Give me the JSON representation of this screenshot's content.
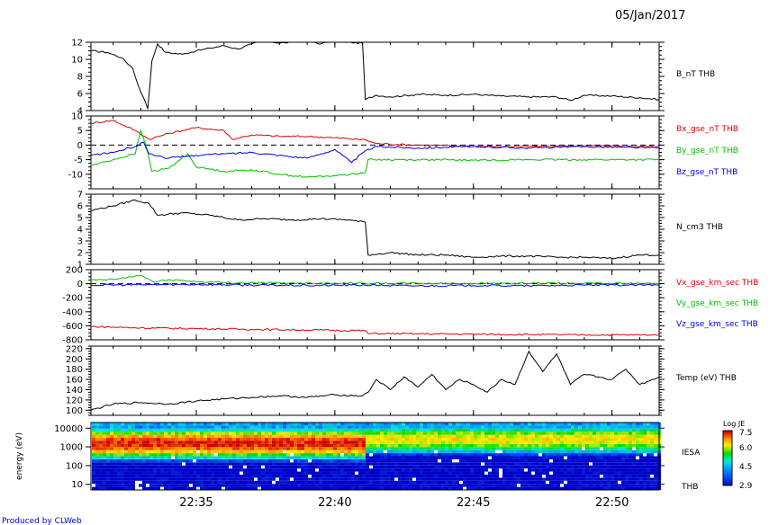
{
  "date_label": "05/Jan/2017",
  "footer": "Produced by CLWeb",
  "time_axis": {
    "range_minutes": [
      31.2,
      51.7
    ],
    "ticks": [
      "22:35",
      "22:40",
      "22:45",
      "22:50"
    ],
    "tick_minutes": [
      35,
      40,
      45,
      50
    ]
  },
  "colors": {
    "black": "#000000",
    "red": "#e00000",
    "green": "#00c000",
    "blue": "#0000e0"
  },
  "chart_data": [
    {
      "type": "line",
      "id": "bnt",
      "ylim": [
        4,
        12
      ],
      "yticks": [
        "4",
        "6",
        "8",
        "10",
        "12"
      ],
      "yvals": [
        4,
        6,
        8,
        10,
        12
      ],
      "series": [
        {
          "name": "B_nT THB",
          "color": "#000000",
          "points": [
            [
              31.2,
              11.0
            ],
            [
              31.8,
              10.8
            ],
            [
              32.3,
              10.2
            ],
            [
              32.7,
              9.0
            ],
            [
              32.9,
              7.0
            ],
            [
              33.1,
              5.5
            ],
            [
              33.25,
              4.2
            ],
            [
              33.4,
              9.8
            ],
            [
              33.6,
              11.8
            ],
            [
              33.9,
              10.8
            ],
            [
              34.5,
              10.6
            ],
            [
              35.0,
              11.0
            ],
            [
              35.5,
              11.3
            ],
            [
              36.0,
              11.6
            ],
            [
              36.5,
              11.2
            ],
            [
              37.0,
              11.8
            ],
            [
              37.5,
              12.2
            ],
            [
              38.0,
              11.9
            ],
            [
              38.5,
              12.0
            ],
            [
              39.0,
              12.2
            ],
            [
              39.5,
              11.8
            ],
            [
              40.0,
              12.3
            ],
            [
              40.5,
              12.0
            ],
            [
              41.0,
              11.9
            ],
            [
              41.1,
              5.3
            ],
            [
              41.5,
              5.8
            ],
            [
              42.0,
              5.6
            ],
            [
              43.0,
              5.9
            ],
            [
              44.0,
              5.8
            ],
            [
              45.0,
              5.9
            ],
            [
              46.0,
              5.7
            ],
            [
              47.0,
              5.6
            ],
            [
              48.0,
              5.6
            ],
            [
              48.5,
              5.2
            ],
            [
              49.0,
              5.8
            ],
            [
              50.0,
              5.7
            ],
            [
              51.0,
              5.5
            ],
            [
              51.7,
              5.3
            ]
          ]
        }
      ]
    },
    {
      "type": "line",
      "id": "bgse",
      "ylim": [
        -15,
        10
      ],
      "yticks": [
        "10",
        "5",
        "0",
        "-5",
        "-10"
      ],
      "yvals": [
        10,
        5,
        0,
        -5,
        -10
      ],
      "zero_line": true,
      "series": [
        {
          "name": "Bx_gse_nT THB",
          "color": "#e00000",
          "points": [
            [
              31.2,
              7.5
            ],
            [
              32.0,
              8.5
            ],
            [
              32.8,
              5.0
            ],
            [
              33.3,
              2.0
            ],
            [
              34.0,
              4.0
            ],
            [
              35.0,
              6.0
            ],
            [
              36.0,
              5.0
            ],
            [
              36.3,
              2.0
            ],
            [
              37.0,
              3.5
            ],
            [
              38.0,
              3.0
            ],
            [
              39.0,
              3.0
            ],
            [
              40.0,
              2.5
            ],
            [
              41.1,
              1.8
            ],
            [
              41.5,
              0.5
            ],
            [
              43.0,
              0.0
            ],
            [
              45.0,
              -0.5
            ],
            [
              47.0,
              -0.5
            ],
            [
              49.0,
              -0.3
            ],
            [
              51.7,
              -0.5
            ]
          ]
        },
        {
          "name": "By_gse_nT THB",
          "color": "#00c000",
          "points": [
            [
              31.2,
              -7.0
            ],
            [
              32.0,
              -5.0
            ],
            [
              32.8,
              -3.0
            ],
            [
              33.0,
              5.0
            ],
            [
              33.2,
              -0.5
            ],
            [
              33.4,
              -9.0
            ],
            [
              34.0,
              -8.0
            ],
            [
              34.7,
              -3.0
            ],
            [
              35.0,
              -7.5
            ],
            [
              36.0,
              -9.0
            ],
            [
              37.0,
              -8.5
            ],
            [
              38.0,
              -10.0
            ],
            [
              39.0,
              -11.0
            ],
            [
              40.0,
              -10.5
            ],
            [
              41.1,
              -9.5
            ],
            [
              41.2,
              -5.0
            ],
            [
              43.0,
              -5.0
            ],
            [
              45.0,
              -5.2
            ],
            [
              47.0,
              -5.0
            ],
            [
              49.0,
              -5.0
            ],
            [
              51.7,
              -5.0
            ]
          ]
        },
        {
          "name": "Bz_gse_nT THB",
          "color": "#0000e0",
          "points": [
            [
              31.2,
              -3.5
            ],
            [
              32.0,
              -2.5
            ],
            [
              32.8,
              -0.5
            ],
            [
              33.1,
              1.0
            ],
            [
              33.3,
              -3.0
            ],
            [
              34.0,
              -4.5
            ],
            [
              35.0,
              -3.5
            ],
            [
              36.0,
              -3.0
            ],
            [
              37.0,
              -2.5
            ],
            [
              38.0,
              -3.5
            ],
            [
              39.0,
              -4.5
            ],
            [
              40.0,
              -1.5
            ],
            [
              40.6,
              -6.0
            ],
            [
              41.1,
              -2.0
            ],
            [
              41.5,
              -0.5
            ],
            [
              43.0,
              -1.0
            ],
            [
              45.0,
              -0.5
            ],
            [
              47.0,
              -1.0
            ],
            [
              49.0,
              -0.5
            ],
            [
              51.7,
              -1.0
            ]
          ]
        }
      ]
    },
    {
      "type": "line",
      "id": "ncm3",
      "ylim": [
        1,
        7
      ],
      "yticks": [
        "1",
        "2",
        "3",
        "4",
        "5",
        "6",
        "7"
      ],
      "yvals": [
        1,
        2,
        3,
        4,
        5,
        6,
        7
      ],
      "series": [
        {
          "name": "N_cm3 THB",
          "color": "#000000",
          "points": [
            [
              31.2,
              5.6
            ],
            [
              32.0,
              6.0
            ],
            [
              32.8,
              6.5
            ],
            [
              33.3,
              6.2
            ],
            [
              33.6,
              5.2
            ],
            [
              34.5,
              5.4
            ],
            [
              35.5,
              5.2
            ],
            [
              36.5,
              4.8
            ],
            [
              37.5,
              4.9
            ],
            [
              38.5,
              4.8
            ],
            [
              39.5,
              4.9
            ],
            [
              40.5,
              4.8
            ],
            [
              41.1,
              4.6
            ],
            [
              41.2,
              1.8
            ],
            [
              42.0,
              2.0
            ],
            [
              43.0,
              1.8
            ],
            [
              44.0,
              1.8
            ],
            [
              45.0,
              1.6
            ],
            [
              46.0,
              1.7
            ],
            [
              47.0,
              1.7
            ],
            [
              48.0,
              1.6
            ],
            [
              49.0,
              1.6
            ],
            [
              50.0,
              1.5
            ],
            [
              51.0,
              1.8
            ],
            [
              51.7,
              1.8
            ]
          ]
        }
      ]
    },
    {
      "type": "line",
      "id": "vgse",
      "ylim": [
        -800,
        200
      ],
      "yticks": [
        "200",
        "0",
        "-200",
        "-400",
        "-600",
        "-800"
      ],
      "yvals": [
        200,
        0,
        -200,
        -400,
        -600,
        -800
      ],
      "zero_line": true,
      "series": [
        {
          "name": "Vx_gse_km_sec THB",
          "color": "#e00000",
          "points": [
            [
              31.2,
              -610
            ],
            [
              33.0,
              -630
            ],
            [
              35.0,
              -640
            ],
            [
              37.0,
              -650
            ],
            [
              39.0,
              -660
            ],
            [
              41.1,
              -670
            ],
            [
              41.2,
              -710
            ],
            [
              43.0,
              -715
            ],
            [
              45.0,
              -720
            ],
            [
              47.0,
              -725
            ],
            [
              49.0,
              -730
            ],
            [
              51.7,
              -730
            ]
          ]
        },
        {
          "name": "Vy_gse_km_sec THB",
          "color": "#00c000",
          "points": [
            [
              31.2,
              50
            ],
            [
              32.0,
              60
            ],
            [
              33.0,
              120
            ],
            [
              33.5,
              20
            ],
            [
              34.0,
              60
            ],
            [
              35.0,
              30
            ],
            [
              36.0,
              15
            ],
            [
              38.0,
              10
            ],
            [
              40.0,
              10
            ],
            [
              41.1,
              5
            ],
            [
              43.0,
              5
            ],
            [
              45.0,
              5
            ],
            [
              47.0,
              5
            ],
            [
              49.0,
              5
            ],
            [
              51.7,
              5
            ]
          ]
        },
        {
          "name": "Vz_gse_km_sec THB",
          "color": "#0000e0",
          "points": [
            [
              31.2,
              -20
            ],
            [
              33.0,
              -15
            ],
            [
              35.0,
              -10
            ],
            [
              37.0,
              -20
            ],
            [
              39.0,
              -25
            ],
            [
              41.1,
              -20
            ],
            [
              43.0,
              -30
            ],
            [
              45.0,
              -25
            ],
            [
              47.0,
              -30
            ],
            [
              49.0,
              -20
            ],
            [
              51.7,
              -20
            ]
          ]
        }
      ]
    },
    {
      "type": "line",
      "id": "temp",
      "ylim": [
        90,
        225
      ],
      "yticks": [
        "100",
        "120",
        "140",
        "160",
        "180",
        "200",
        "220"
      ],
      "yvals": [
        100,
        120,
        140,
        160,
        180,
        200,
        220
      ],
      "series": [
        {
          "name": "Temp (eV) THB",
          "color": "#000000",
          "points": [
            [
              31.2,
              100
            ],
            [
              32.0,
              112
            ],
            [
              33.0,
              115
            ],
            [
              34.0,
              112
            ],
            [
              35.0,
              118
            ],
            [
              36.0,
              122
            ],
            [
              37.0,
              125
            ],
            [
              38.0,
              128
            ],
            [
              39.0,
              125
            ],
            [
              40.0,
              130
            ],
            [
              41.0,
              128
            ],
            [
              41.2,
              135
            ],
            [
              41.5,
              160
            ],
            [
              42.0,
              140
            ],
            [
              42.5,
              165
            ],
            [
              43.0,
              145
            ],
            [
              43.5,
              170
            ],
            [
              44.0,
              140
            ],
            [
              44.5,
              160
            ],
            [
              45.0,
              150
            ],
            [
              45.5,
              135
            ],
            [
              46.0,
              160
            ],
            [
              46.5,
              150
            ],
            [
              47.0,
              215
            ],
            [
              47.5,
              175
            ],
            [
              48.0,
              210
            ],
            [
              48.5,
              150
            ],
            [
              49.0,
              170
            ],
            [
              49.5,
              165
            ],
            [
              50.0,
              160
            ],
            [
              50.5,
              180
            ],
            [
              51.0,
              150
            ],
            [
              51.7,
              165
            ]
          ]
        }
      ]
    },
    {
      "type": "heatmap",
      "id": "iesa",
      "ylabel": "energy (eV)",
      "yticks": [
        "10",
        "100",
        "1000",
        "10000"
      ],
      "ylog": [
        5,
        20000
      ],
      "label": "IESA",
      "sublabel": "THB",
      "colorbar": {
        "title": "Log JE",
        "ticks": [
          "7.5",
          "6.0",
          "4.5",
          "2.9"
        ],
        "range": [
          2.9,
          7.5
        ]
      },
      "bands": [
        {
          "t_end": 41.1,
          "peak_energy": 1500,
          "peak_value": 7.4
        },
        {
          "t_end": 51.7,
          "peak_energy": 2500,
          "peak_value": 6.4
        }
      ]
    }
  ]
}
